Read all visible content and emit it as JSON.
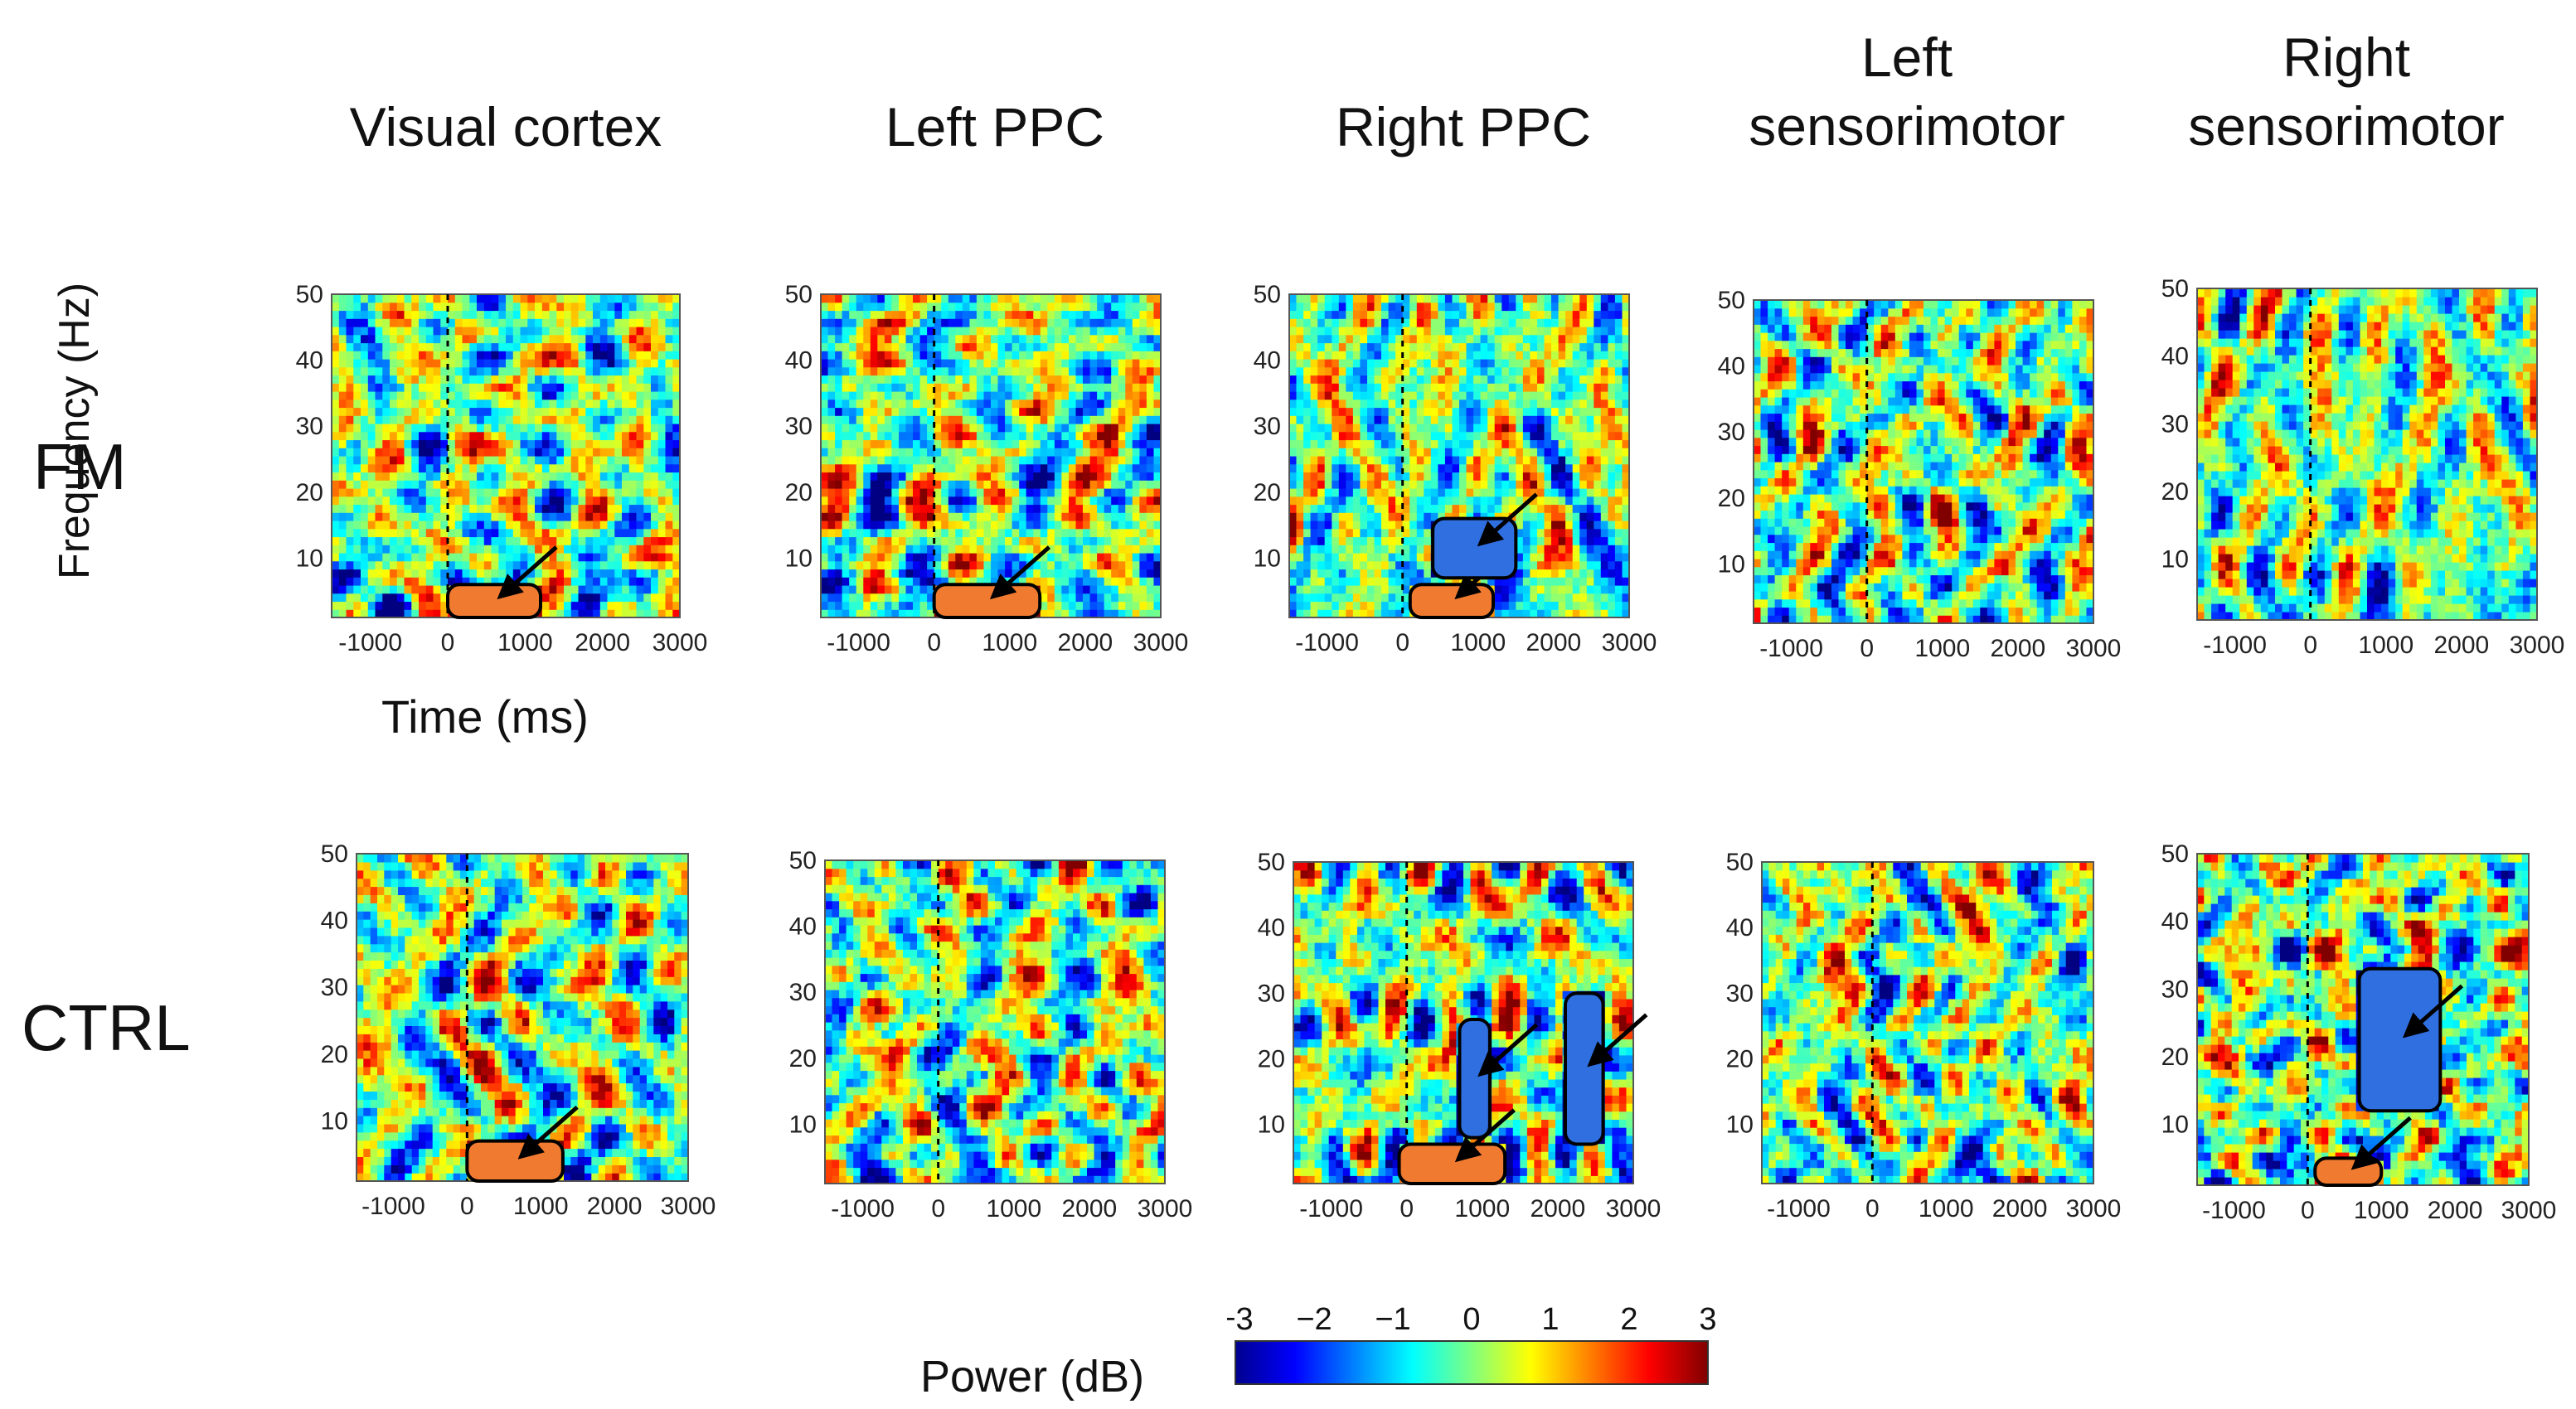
{
  "columns": [
    "Visual cortex",
    "Left PPC",
    "Right PPC",
    "Left\nsensorimotor",
    "Right\nsensorimotor"
  ],
  "rows": [
    "FM",
    "CTRL"
  ],
  "ylabel": "Frequency (Hz)",
  "xlabel": "Time (ms)",
  "colorbar": {
    "label": "Power (dB)",
    "ticks": [
      "−3",
      "−2",
      "−1",
      "0",
      "1",
      "2",
      "3"
    ],
    "range": [
      -3,
      3
    ],
    "colormap": "jet"
  },
  "chart_data": {
    "type": "heatmap",
    "x_ticks": [
      -1000,
      0,
      1000,
      2000,
      3000
    ],
    "x_tick_labels": [
      "-1000",
      "0",
      "1000",
      "2000",
      "3000"
    ],
    "y_ticks": [
      10,
      20,
      30,
      40,
      50
    ],
    "y_tick_labels": [
      "10",
      "20",
      "30",
      "40",
      "50"
    ],
    "xlim": [
      -1500,
      3000
    ],
    "ylim": [
      1,
      50
    ],
    "stimulus_onset_ms": 0,
    "panels": [
      {
        "row": "FM",
        "column": "Visual cortex",
        "clusters": [
          {
            "sign": "positive",
            "t": [
              0,
              1200
            ],
            "f": [
              1,
              6
            ],
            "arrow": true
          }
        ]
      },
      {
        "row": "FM",
        "column": "Left PPC",
        "clusters": [
          {
            "sign": "positive",
            "t": [
              0,
              1400
            ],
            "f": [
              1,
              6
            ],
            "arrow": true
          }
        ]
      },
      {
        "row": "FM",
        "column": "Right PPC",
        "clusters": [
          {
            "sign": "positive",
            "t": [
              100,
              1200
            ],
            "f": [
              1,
              6
            ],
            "arrow": true
          },
          {
            "sign": "negative",
            "t": [
              400,
              1500
            ],
            "f": [
              7,
              16
            ],
            "arrow": true
          }
        ]
      },
      {
        "row": "FM",
        "column": "Left sensorimotor",
        "clusters": []
      },
      {
        "row": "FM",
        "column": "Right sensorimotor",
        "clusters": []
      },
      {
        "row": "CTRL",
        "column": "Visual cortex",
        "clusters": [
          {
            "sign": "positive",
            "t": [
              0,
              1300
            ],
            "f": [
              1,
              7
            ],
            "arrow": true
          }
        ]
      },
      {
        "row": "CTRL",
        "column": "Left PPC",
        "clusters": []
      },
      {
        "row": "CTRL",
        "column": "Right PPC",
        "clusters": [
          {
            "sign": "positive",
            "t": [
              -100,
              1300
            ],
            "f": [
              1,
              7
            ],
            "arrow": true
          },
          {
            "sign": "negative",
            "t": [
              700,
              1100
            ],
            "f": [
              8,
              26
            ],
            "arrow": true
          },
          {
            "sign": "negative",
            "t": [
              2100,
              2600
            ],
            "f": [
              7,
              30
            ],
            "arrow": true
          }
        ]
      },
      {
        "row": "CTRL",
        "column": "Left sensorimotor",
        "clusters": []
      },
      {
        "row": "CTRL",
        "column": "Right sensorimotor",
        "clusters": [
          {
            "sign": "positive",
            "t": [
              100,
              1000
            ],
            "f": [
              1,
              5
            ],
            "arrow": true
          },
          {
            "sign": "negative",
            "t": [
              700,
              1800
            ],
            "f": [
              12,
              33
            ],
            "arrow": true
          }
        ]
      }
    ]
  }
}
